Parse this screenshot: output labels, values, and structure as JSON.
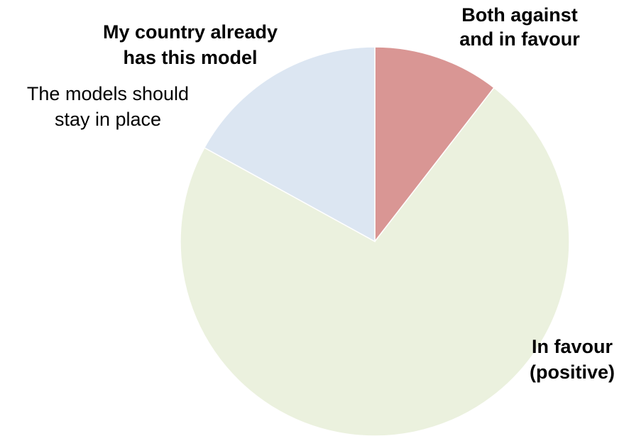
{
  "chart_data": {
    "type": "pie",
    "title": "",
    "start_angle_deg": 0,
    "direction": "clockwise",
    "slices": [
      {
        "label_lines": [
          "Both against",
          "and in favour"
        ],
        "value": 10.5,
        "color": "#d99694",
        "label_bold": true
      },
      {
        "label_lines": [
          "In favour",
          "(positive)"
        ],
        "value": 72.5,
        "color": "#ebf1de",
        "label_bold": true
      },
      {
        "label_lines": [
          "The models should",
          "stay in place"
        ],
        "value": 0,
        "color": "#dce6f2",
        "label_bold": false
      },
      {
        "label_lines": [
          "My country already",
          "has this model"
        ],
        "value": 17.0,
        "color": "#dce6f2",
        "label_bold": true
      }
    ]
  }
}
